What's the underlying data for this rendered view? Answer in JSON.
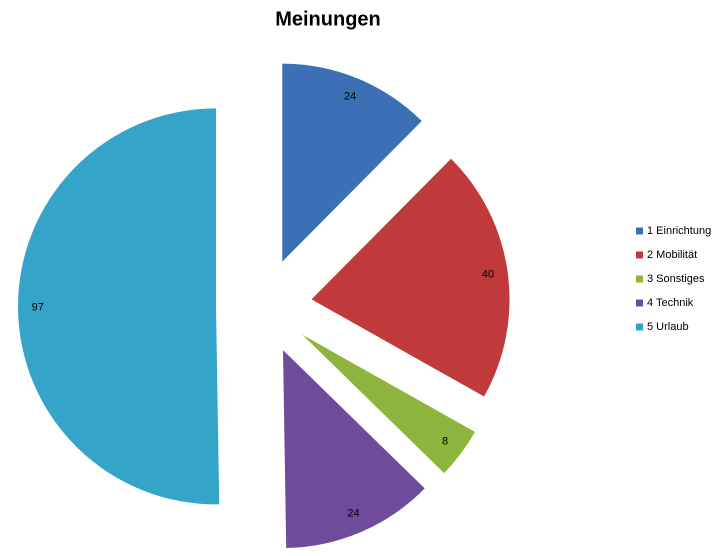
{
  "chart_data": {
    "type": "pie",
    "title": "Meinungen",
    "categories": [
      "1 Einrichtung",
      "2 Mobilität",
      "3 Sonstiges",
      "4 Technik",
      "5 Urlaub"
    ],
    "values": [
      24,
      40,
      8,
      24,
      97
    ],
    "colors": [
      "#3b6fb6",
      "#c0393b",
      "#8db53e",
      "#6f4c9b",
      "#34a5c8"
    ],
    "legend": "right"
  }
}
